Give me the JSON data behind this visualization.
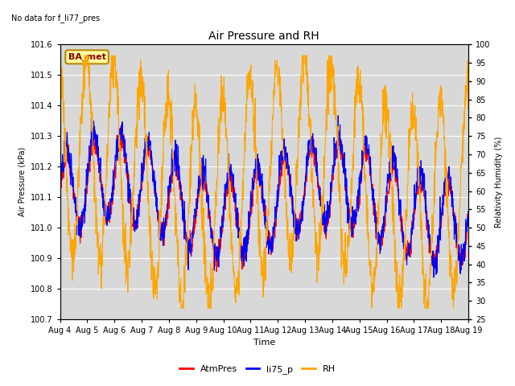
{
  "title": "Air Pressure and RH",
  "top_left_text": "No data for f_li77_pres",
  "xlabel": "Time",
  "ylabel_left": "Air Pressure (kPa)",
  "ylabel_right": "Relativity Humidity (%)",
  "ylim_left": [
    100.7,
    101.6
  ],
  "ylim_right": [
    25,
    100
  ],
  "yticks_left": [
    100.7,
    100.8,
    100.9,
    101.0,
    101.1,
    101.2,
    101.3,
    101.4,
    101.5,
    101.6
  ],
  "yticks_right": [
    25,
    30,
    35,
    40,
    45,
    50,
    55,
    60,
    65,
    70,
    75,
    80,
    85,
    90,
    95,
    100
  ],
  "xtick_labels": [
    "Aug 4",
    "Aug 5",
    "Aug 6",
    "Aug 7",
    "Aug 8",
    "Aug 9",
    "Aug 10",
    "Aug 11",
    "Aug 12",
    "Aug 13",
    "Aug 14",
    "Aug 15",
    "Aug 16",
    "Aug 17",
    "Aug 18",
    "Aug 19"
  ],
  "legend_entries": [
    "AtmPres",
    "li75_p",
    "RH"
  ],
  "legend_colors": [
    "#ff0000",
    "#0000ff",
    "#ffa500"
  ],
  "line_colors": {
    "AtmPres": "#ff0000",
    "li75_p": "#0000ff",
    "RH": "#ffa500"
  },
  "fig_bg_color": "#ffffff",
  "plot_bg_color": "#d8d8d8",
  "ba_met_box_color": "#ffffa0",
  "ba_met_text_color": "#8b0000",
  "ba_met_edge_color": "#b8860b",
  "n_points": 1500,
  "days": 15,
  "seed": 42
}
